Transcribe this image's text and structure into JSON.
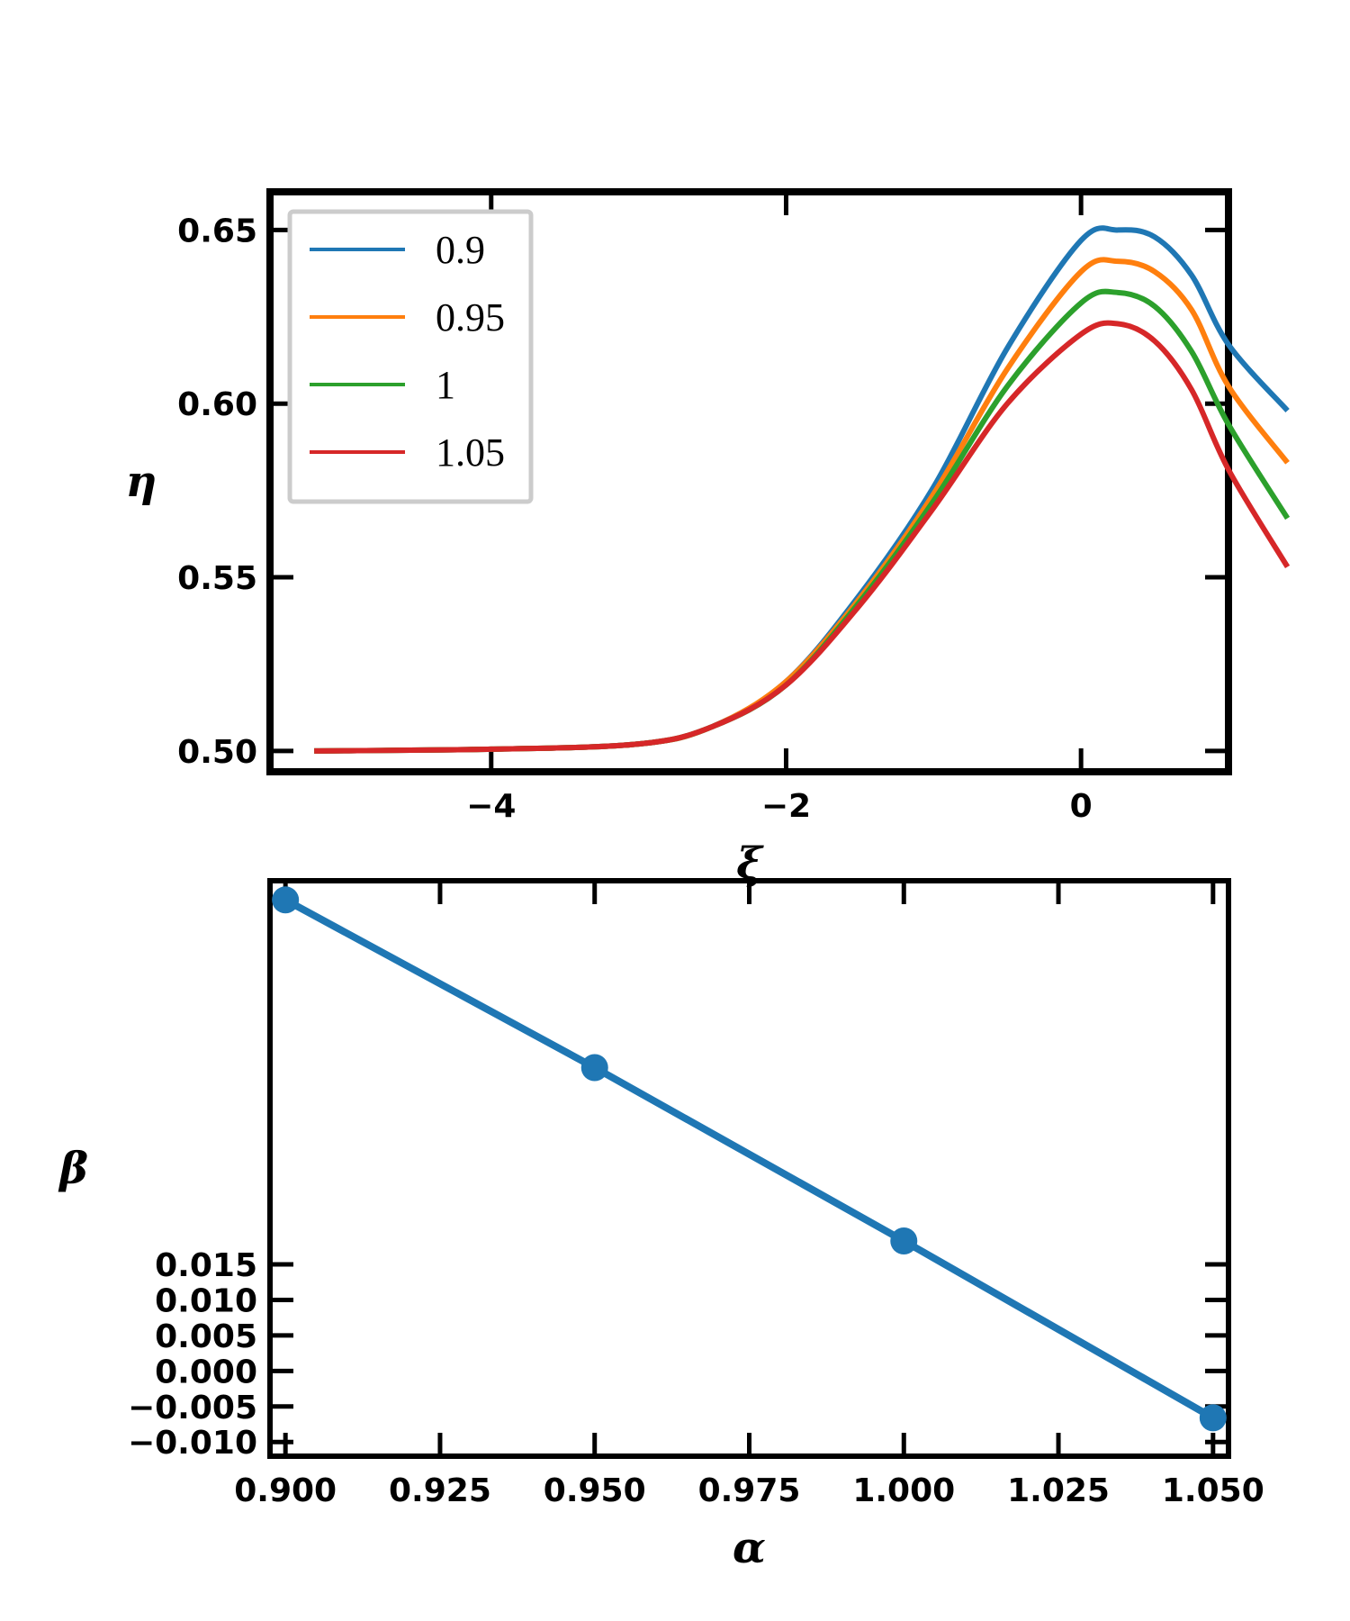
{
  "chart_data": [
    {
      "type": "line",
      "xlabel": "ξ",
      "ylabel": "η",
      "xlim": [
        -5.5,
        1.0
      ],
      "ylim": [
        0.494,
        0.661
      ],
      "xticks": [
        -4,
        -2,
        0
      ],
      "xtick_labels": [
        "−4",
        "−2",
        "0"
      ],
      "yticks": [
        0.5,
        0.55,
        0.6,
        0.65
      ],
      "ytick_labels": [
        "0.50",
        "0.55",
        "0.60",
        "0.65"
      ],
      "grid": false,
      "legend_position": "top-left",
      "series": [
        {
          "name": "0.9",
          "color": "#1f77b4",
          "x": [
            -5.2,
            -4,
            -3,
            -2.5,
            -2,
            -1.5,
            -1,
            -0.5,
            0,
            0.25,
            0.5,
            0.75,
            1.0,
            1.4
          ],
          "y": [
            0.5,
            0.5005,
            0.502,
            0.507,
            0.52,
            0.545,
            0.576,
            0.616,
            0.647,
            0.65,
            0.648,
            0.637,
            0.617,
            0.598
          ]
        },
        {
          "name": "0.95",
          "color": "#ff7f0e",
          "x": [
            -5.2,
            -4,
            -3,
            -2.5,
            -2,
            -1.5,
            -1,
            -0.5,
            0,
            0.25,
            0.5,
            0.75,
            1.0,
            1.4
          ],
          "y": [
            0.5,
            0.5005,
            0.502,
            0.507,
            0.52,
            0.544,
            0.574,
            0.61,
            0.638,
            0.641,
            0.638,
            0.627,
            0.605,
            0.583
          ]
        },
        {
          "name": "1",
          "color": "#2ca02c",
          "x": [
            -5.2,
            -4,
            -3,
            -2.5,
            -2,
            -1.5,
            -1,
            -0.5,
            0,
            0.25,
            0.5,
            0.75,
            1.0,
            1.4
          ],
          "y": [
            0.5,
            0.5005,
            0.502,
            0.507,
            0.519,
            0.543,
            0.572,
            0.605,
            0.629,
            0.632,
            0.628,
            0.615,
            0.594,
            0.567
          ]
        },
        {
          "name": "1.05",
          "color": "#d62728",
          "x": [
            -5.2,
            -4,
            -3,
            -2.5,
            -2,
            -1.5,
            -1,
            -0.5,
            0,
            0.25,
            0.5,
            0.75,
            1.0,
            1.4
          ],
          "y": [
            0.5,
            0.5005,
            0.502,
            0.507,
            0.519,
            0.542,
            0.57,
            0.6,
            0.62,
            0.623,
            0.618,
            0.604,
            0.581,
            0.553
          ]
        }
      ]
    },
    {
      "type": "line",
      "xlabel": "α",
      "ylabel": "β",
      "xlim": [
        0.8975,
        1.0525
      ],
      "ylim": [
        -0.012,
        0.069
      ],
      "xticks": [
        0.9,
        0.925,
        0.95,
        0.975,
        1.0,
        1.025,
        1.05
      ],
      "xtick_labels": [
        "0.900",
        "0.925",
        "0.950",
        "0.975",
        "1.000",
        "1.025",
        "1.050"
      ],
      "yticks": [
        -0.01,
        -0.005,
        0.0,
        0.005,
        0.01,
        0.015
      ],
      "ytick_labels": [
        "−0.010",
        "−0.005",
        "0.000",
        "0.005",
        "0.010",
        "0.015"
      ],
      "grid": false,
      "series": [
        {
          "color": "#1f77b4",
          "x": [
            0.9,
            0.95,
            1.0,
            1.05
          ],
          "y": [
            0.0663,
            0.0427,
            0.0183,
            -0.0066
          ]
        }
      ]
    }
  ]
}
